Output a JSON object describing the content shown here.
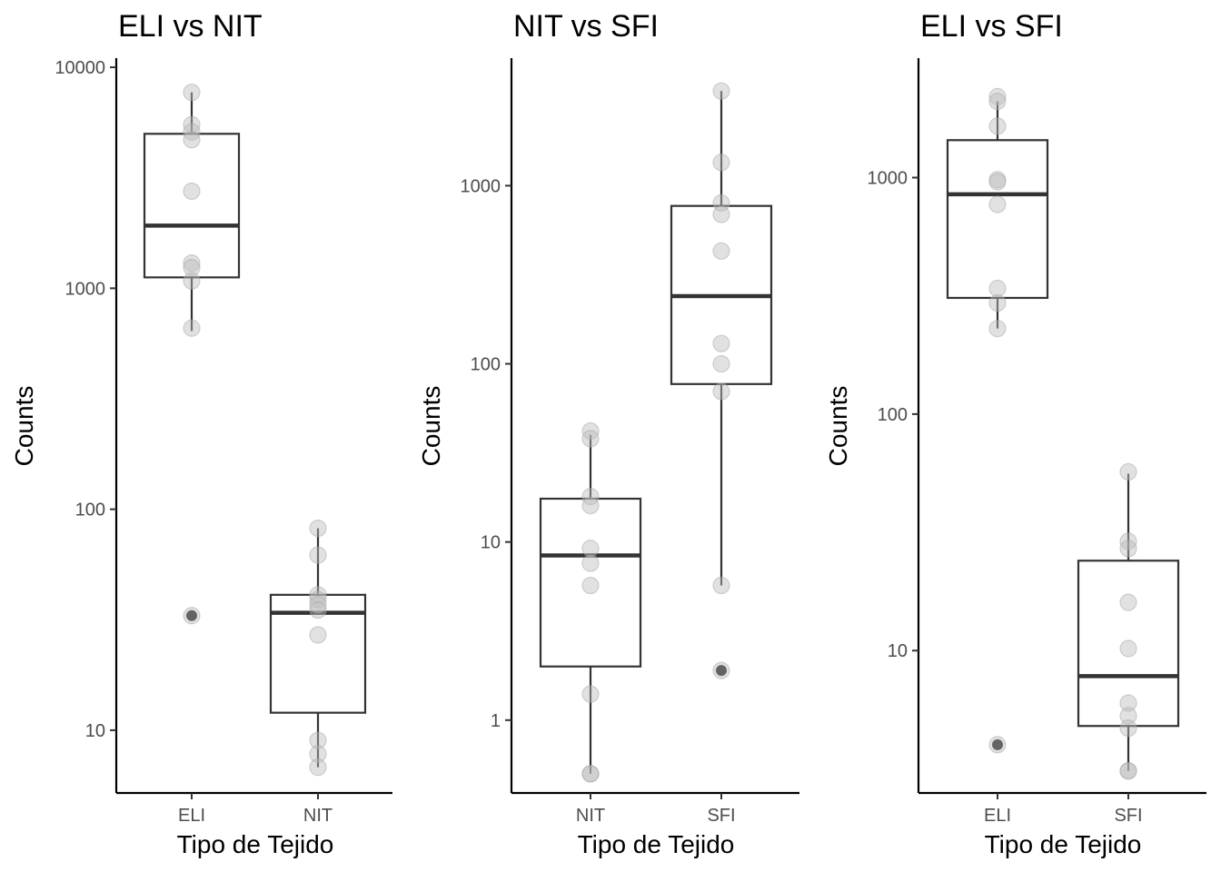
{
  "chart_data": [
    {
      "type": "box",
      "title": "ELI vs NIT",
      "xlabel": "Tipo de Tejido",
      "ylabel": "Counts",
      "yscale": "log10",
      "ylim": [
        5.2,
        11000
      ],
      "yticks": [
        10,
        100,
        1000,
        10000
      ],
      "ytick_labels": [
        "10",
        "100",
        "1000",
        "10000"
      ],
      "categories": [
        "ELI",
        "NIT"
      ],
      "boxes": [
        {
          "category": "ELI",
          "q1": 1120,
          "median": 1920,
          "q3": 5000,
          "whisker_low": 640,
          "whisker_high": 7700,
          "outliers": [
            33
          ]
        },
        {
          "category": "NIT",
          "q1": 12,
          "median": 34,
          "q3": 41,
          "whisker_low": 6.8,
          "whisker_high": 82,
          "outliers": []
        }
      ],
      "points": [
        {
          "category": "ELI",
          "values": [
            7700,
            5500,
            5100,
            4700,
            2750,
            1300,
            1240,
            1080,
            660,
            33
          ]
        },
        {
          "category": "NIT",
          "values": [
            82,
            62,
            41,
            39,
            37,
            35,
            27,
            9,
            7.8,
            6.8
          ]
        }
      ]
    },
    {
      "type": "box",
      "title": "NIT vs SFI",
      "xlabel": "Tipo de Tejido",
      "ylabel": "Counts",
      "yscale": "log10",
      "ylim": [
        0.39,
        5200
      ],
      "yticks": [
        1,
        10,
        100,
        1000
      ],
      "ytick_labels": [
        "1",
        "10",
        "100",
        "1000"
      ],
      "categories": [
        "NIT",
        "SFI"
      ],
      "boxes": [
        {
          "category": "NIT",
          "q1": 2,
          "median": 8.4,
          "q3": 17.5,
          "whisker_low": 0.5,
          "whisker_high": 40,
          "outliers": []
        },
        {
          "category": "SFI",
          "q1": 77,
          "median": 240,
          "q3": 770,
          "whisker_low": 5.7,
          "whisker_high": 3400,
          "outliers": [
            1.9
          ]
        }
      ],
      "points": [
        {
          "category": "NIT",
          "values": [
            42,
            38,
            18,
            16,
            9.2,
            7.6,
            5.7,
            1.4,
            0.5,
            0.5
          ]
        },
        {
          "category": "SFI",
          "values": [
            3400,
            1350,
            800,
            690,
            430,
            130,
            100,
            70,
            5.7,
            1.9
          ]
        }
      ]
    },
    {
      "type": "box",
      "title": "ELI vs SFI",
      "xlabel": "Tipo de Tejido",
      "ylabel": "Counts",
      "yscale": "log10",
      "ylim": [
        2.5,
        3200
      ],
      "yticks": [
        10,
        100,
        1000
      ],
      "ytick_labels": [
        "10",
        "100",
        "1000"
      ],
      "categories": [
        "ELI",
        "SFI"
      ],
      "boxes": [
        {
          "category": "ELI",
          "q1": 310,
          "median": 850,
          "q3": 1440,
          "whisker_low": 230,
          "whisker_high": 2100,
          "outliers": [
            4
          ]
        },
        {
          "category": "SFI",
          "q1": 4.8,
          "median": 7.8,
          "q3": 24,
          "whisker_low": 3.1,
          "whisker_high": 56,
          "outliers": []
        }
      ],
      "points": [
        {
          "category": "ELI",
          "values": [
            2200,
            2100,
            1650,
            980,
            960,
            770,
            340,
            295,
            230,
            4
          ]
        },
        {
          "category": "SFI",
          "values": [
            57,
            29,
            27,
            16,
            10.2,
            6,
            5.3,
            4.7,
            3.1,
            3.1
          ]
        }
      ]
    }
  ]
}
